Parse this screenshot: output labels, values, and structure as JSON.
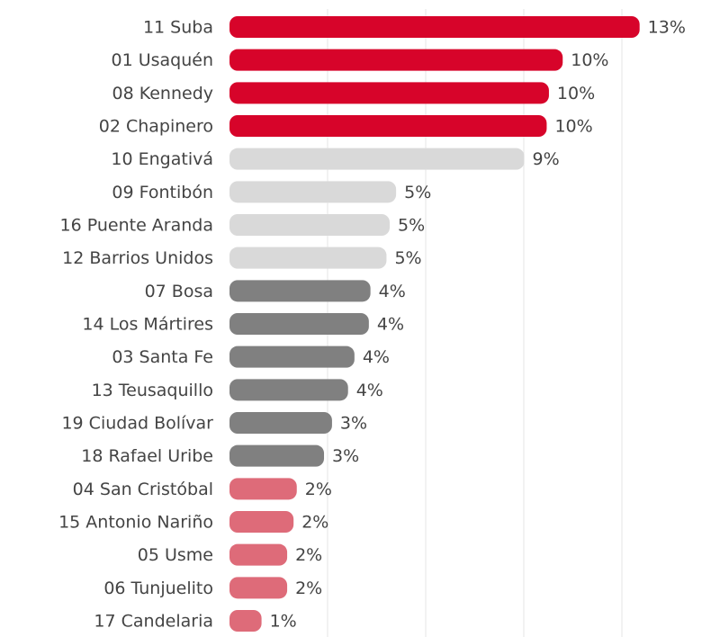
{
  "chart_data": {
    "type": "hbar",
    "categories": [
      "11 Suba",
      "01 Usaquén",
      "08 Kennedy",
      "02 Chapinero",
      "10 Engativá",
      "09 Fontibón",
      "16 Puente Aranda",
      "12 Barrios Unidos",
      "07 Bosa",
      "14 Los Mártires",
      "03 Santa Fe",
      "13 Teusaquillo",
      "19 Ciudad Bolívar",
      "18 Rafael Uribe",
      "04 San Cristóbal",
      "15 Antonio Nariño",
      "05 Usme",
      "06 Tunjuelito",
      "17 Candelaria"
    ],
    "values": [
      12.8,
      10.4,
      9.97,
      9.9,
      9.2,
      5.2,
      5.0,
      4.9,
      4.4,
      4.35,
      3.9,
      3.7,
      3.2,
      2.95,
      2.1,
      2.0,
      1.8,
      1.8,
      1.0
    ],
    "value_labels": [
      "13%",
      "10%",
      "10%",
      "10%",
      "9%",
      "5%",
      "5%",
      "5%",
      "4%",
      "4%",
      "4%",
      "4%",
      "3%",
      "3%",
      "2%",
      "2%",
      "2%",
      "2%",
      "1%"
    ],
    "colors": [
      "#d7042a",
      "#d7042a",
      "#d7042a",
      "#d7042a",
      "#d9d9d9",
      "#d9d9d9",
      "#d9d9d9",
      "#d9d9d9",
      "#808080",
      "#808080",
      "#808080",
      "#808080",
      "#808080",
      "#808080",
      "#de6b79",
      "#de6b79",
      "#de6b79",
      "#de6b79",
      "#de6b79"
    ],
    "xlim": [
      0,
      15
    ]
  }
}
